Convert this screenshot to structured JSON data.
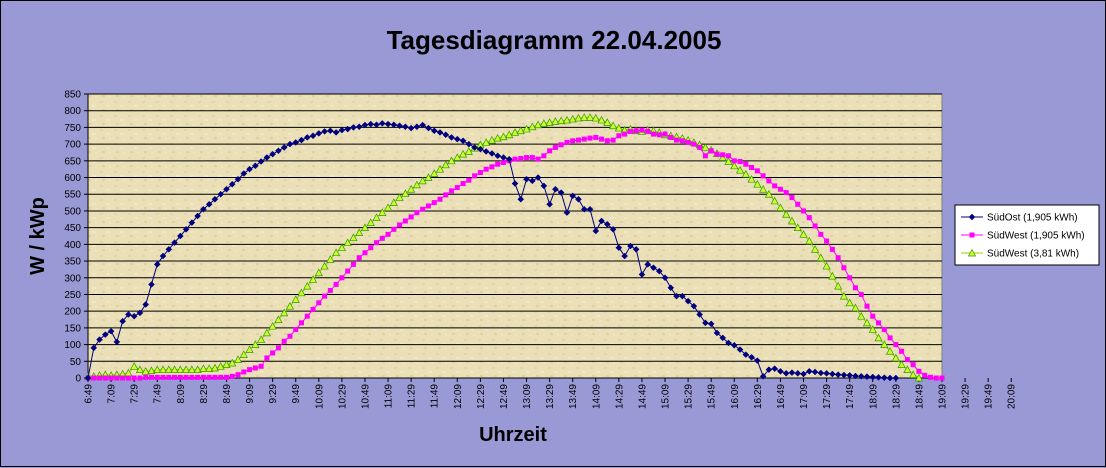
{
  "chart_data": {
    "type": "line",
    "title": "Tagesdiagramm 22.04.2005",
    "xlabel": "Uhrzeit",
    "ylabel": "W / kWp",
    "ylim": [
      0,
      850
    ],
    "yticks": [
      0,
      50,
      100,
      150,
      200,
      250,
      300,
      350,
      400,
      450,
      500,
      550,
      600,
      650,
      700,
      750,
      800,
      850
    ],
    "xticks": [
      "6:49",
      "7:09",
      "7:29",
      "7:49",
      "8:09",
      "8:29",
      "8:49",
      "9:09",
      "9:29",
      "9:49",
      "10:09",
      "10:29",
      "10:49",
      "11:09",
      "11:29",
      "11:49",
      "12:09",
      "12:29",
      "12:49",
      "13:09",
      "13:29",
      "13:49",
      "14:09",
      "14:29",
      "14:49",
      "15:09",
      "15:29",
      "15:49",
      "16:09",
      "16:29",
      "16:49",
      "17:09",
      "17:29",
      "17:49",
      "18:09",
      "18:29",
      "18:49",
      "19:09",
      "19:29",
      "19:49",
      "20:09"
    ],
    "x_start_minutes": 409,
    "x_step_minutes": 5,
    "grid": true,
    "legend_position": "right",
    "series": [
      {
        "name": "SüdOst (1,905 kWh)",
        "color": "#000080",
        "marker": "diamond",
        "values": [
          0,
          90,
          115,
          130,
          140,
          108,
          170,
          190,
          185,
          195,
          220,
          280,
          340,
          365,
          385,
          405,
          425,
          445,
          465,
          485,
          505,
          520,
          535,
          550,
          565,
          580,
          595,
          612,
          625,
          635,
          648,
          660,
          670,
          680,
          690,
          700,
          705,
          712,
          720,
          725,
          732,
          738,
          740,
          735,
          742,
          745,
          750,
          752,
          757,
          760,
          758,
          762,
          760,
          758,
          755,
          752,
          748,
          752,
          757,
          748,
          740,
          735,
          728,
          720,
          715,
          710,
          700,
          690,
          685,
          678,
          672,
          665,
          660,
          655,
          582,
          535,
          595,
          590,
          600,
          575,
          520,
          565,
          555,
          495,
          545,
          535,
          505,
          505,
          440,
          470,
          460,
          445,
          390,
          365,
          395,
          385,
          310,
          340,
          330,
          320,
          300,
          270,
          245,
          245,
          230,
          215,
          190,
          165,
          162,
          135,
          120,
          105,
          98,
          85,
          70,
          62,
          52,
          5,
          25,
          28,
          20,
          14,
          16,
          14,
          12,
          20,
          18,
          15,
          14,
          12,
          10,
          9,
          8,
          6,
          5,
          4,
          3,
          2,
          1,
          0,
          0
        ]
      },
      {
        "name": "SüdWest (1,905 kWh)",
        "color": "#ff00ff",
        "marker": "square",
        "values": [
          0,
          0,
          0,
          0,
          0,
          0,
          0,
          0,
          0,
          0,
          2,
          2,
          2,
          2,
          2,
          2,
          2,
          2,
          2,
          2,
          2,
          2,
          2,
          2,
          2,
          5,
          10,
          18,
          25,
          30,
          35,
          60,
          75,
          90,
          110,
          125,
          145,
          165,
          185,
          205,
          225,
          245,
          262,
          280,
          300,
          320,
          340,
          360,
          375,
          390,
          405,
          418,
          430,
          445,
          458,
          470,
          482,
          495,
          505,
          515,
          525,
          535,
          548,
          560,
          570,
          582,
          592,
          605,
          615,
          625,
          632,
          640,
          645,
          650,
          655,
          657,
          660,
          660,
          655,
          665,
          680,
          690,
          698,
          705,
          710,
          712,
          715,
          718,
          720,
          715,
          710,
          712,
          725,
          730,
          738,
          740,
          742,
          738,
          730,
          728,
          730,
          720,
          712,
          710,
          705,
          700,
          690,
          665,
          680,
          670,
          668,
          665,
          650,
          648,
          640,
          630,
          620,
          605,
          590,
          575,
          565,
          555,
          540,
          520,
          500,
          480,
          455,
          430,
          410,
          385,
          360,
          330,
          300,
          270,
          250,
          215,
          185,
          165,
          145,
          120,
          100,
          80,
          55,
          40,
          20,
          8,
          2,
          0,
          0
        ]
      },
      {
        "name": "SüdWest (3,81 kWh)",
        "color": "#ccff33",
        "marker": "triangle",
        "values": [
          5,
          5,
          8,
          10,
          8,
          10,
          12,
          15,
          35,
          25,
          20,
          22,
          25,
          25,
          25,
          25,
          25,
          25,
          25,
          25,
          28,
          28,
          30,
          35,
          40,
          45,
          55,
          70,
          85,
          100,
          115,
          135,
          155,
          175,
          195,
          215,
          235,
          255,
          275,
          295,
          315,
          335,
          355,
          375,
          390,
          405,
          420,
          435,
          450,
          465,
          480,
          495,
          510,
          525,
          540,
          552,
          565,
          578,
          590,
          600,
          612,
          625,
          638,
          650,
          660,
          670,
          678,
          688,
          698,
          705,
          712,
          718,
          722,
          728,
          735,
          740,
          745,
          752,
          758,
          762,
          765,
          768,
          770,
          772,
          775,
          778,
          780,
          780,
          778,
          772,
          765,
          755,
          748,
          742,
          745,
          740,
          738,
          742,
          740,
          735,
          728,
          725,
          722,
          718,
          712,
          705,
          698,
          690,
          682,
          672,
          660,
          648,
          635,
          622,
          610,
          595,
          580,
          565,
          550,
          530,
          510,
          490,
          470,
          450,
          430,
          410,
          385,
          360,
          335,
          305,
          275,
          245,
          225,
          210,
          185,
          165,
          145,
          120,
          100,
          80,
          60,
          40,
          25,
          10,
          0
        ]
      }
    ]
  }
}
